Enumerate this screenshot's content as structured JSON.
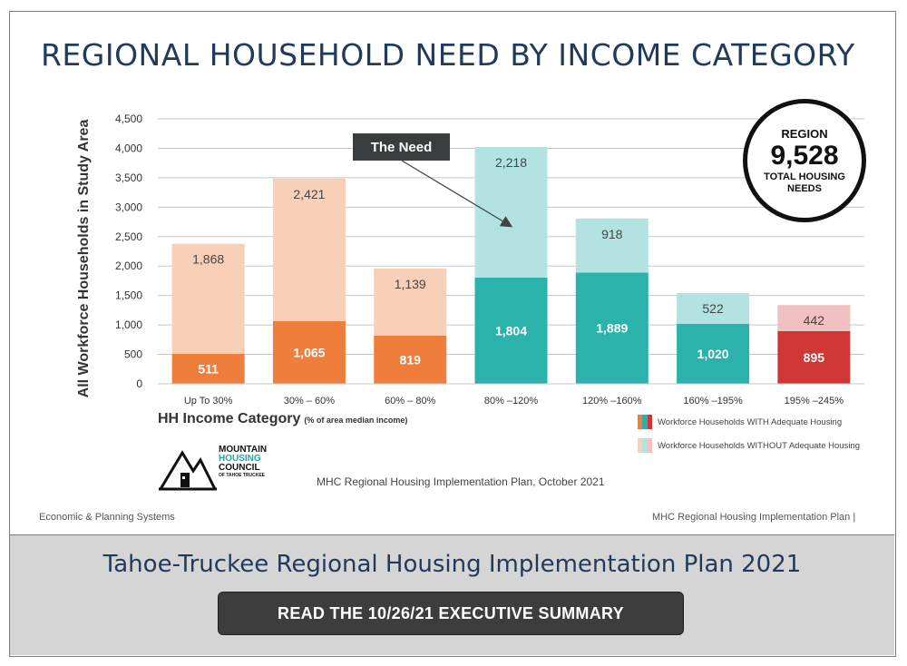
{
  "slide": {
    "title": "REGIONAL HOUSEHOLD NEED BY INCOME CATEGORY",
    "callout": "The Need",
    "region_box": {
      "label": "REGION",
      "value": "9,528",
      "sub1": "TOTAL HOUSING",
      "sub2": "NEEDS"
    },
    "logo_text": {
      "line1": "MOUNTAIN",
      "line2": "HOUSING",
      "line3": "COUNCIL",
      "line4": "OF TAHOE TRUCKEE"
    },
    "source_note": "MHC Regional Housing Implementation Plan, October 2021",
    "footer_left": "Economic & Planning Systems",
    "footer_right": "MHC Regional Housing Implementation Plan |"
  },
  "banner": {
    "title": "Tahoe-Truckee Regional Housing Implementation Plan 2021",
    "button_label": "READ THE 10/26/21 EXECUTIVE SUMMARY"
  },
  "colors": {
    "orange_with": "#ef7e3d",
    "orange_without": "#f8cfb7",
    "teal_with": "#2bb3ab",
    "teal_without": "#b3e3e1",
    "red_with": "#cf3636",
    "red_without": "#f1c0c0"
  },
  "chart_data": {
    "type": "bar",
    "stacked": true,
    "title": "REGIONAL HOUSEHOLD NEED BY INCOME CATEGORY",
    "xlabel": "HH Income Category",
    "xlabel_note": "(% of area median income)",
    "ylabel": "All Workforce Households in Study Area",
    "ylim": [
      0,
      4500
    ],
    "yticks": [
      "0",
      "500",
      "1,000",
      "1,500",
      "2,000",
      "2,500",
      "3,000",
      "3,500",
      "4,000",
      "4,500"
    ],
    "grid": true,
    "categories": [
      "Up To 30%",
      "30% – 60%",
      "60% – 80%",
      "80% –120%",
      "120% –160%",
      "160% –195%",
      "195% –245%"
    ],
    "series": [
      {
        "name": "Workforce Households WITH Adequate Housing",
        "values": [
          511,
          1065,
          819,
          1804,
          1889,
          1020,
          895
        ],
        "labels": [
          "511",
          "1,065",
          "819",
          "1,804",
          "1,889",
          "1,020",
          "895"
        ]
      },
      {
        "name": "Workforce Households WITHOUT Adequate Housing",
        "values": [
          1868,
          2421,
          1139,
          2218,
          918,
          522,
          442
        ],
        "labels": [
          "1,868",
          "2,421",
          "1,139",
          "2,218",
          "918",
          "522",
          "442"
        ]
      }
    ],
    "bar_colors": [
      "orange",
      "orange",
      "orange",
      "teal",
      "teal",
      "teal",
      "red"
    ],
    "legend": "bottom-right"
  }
}
